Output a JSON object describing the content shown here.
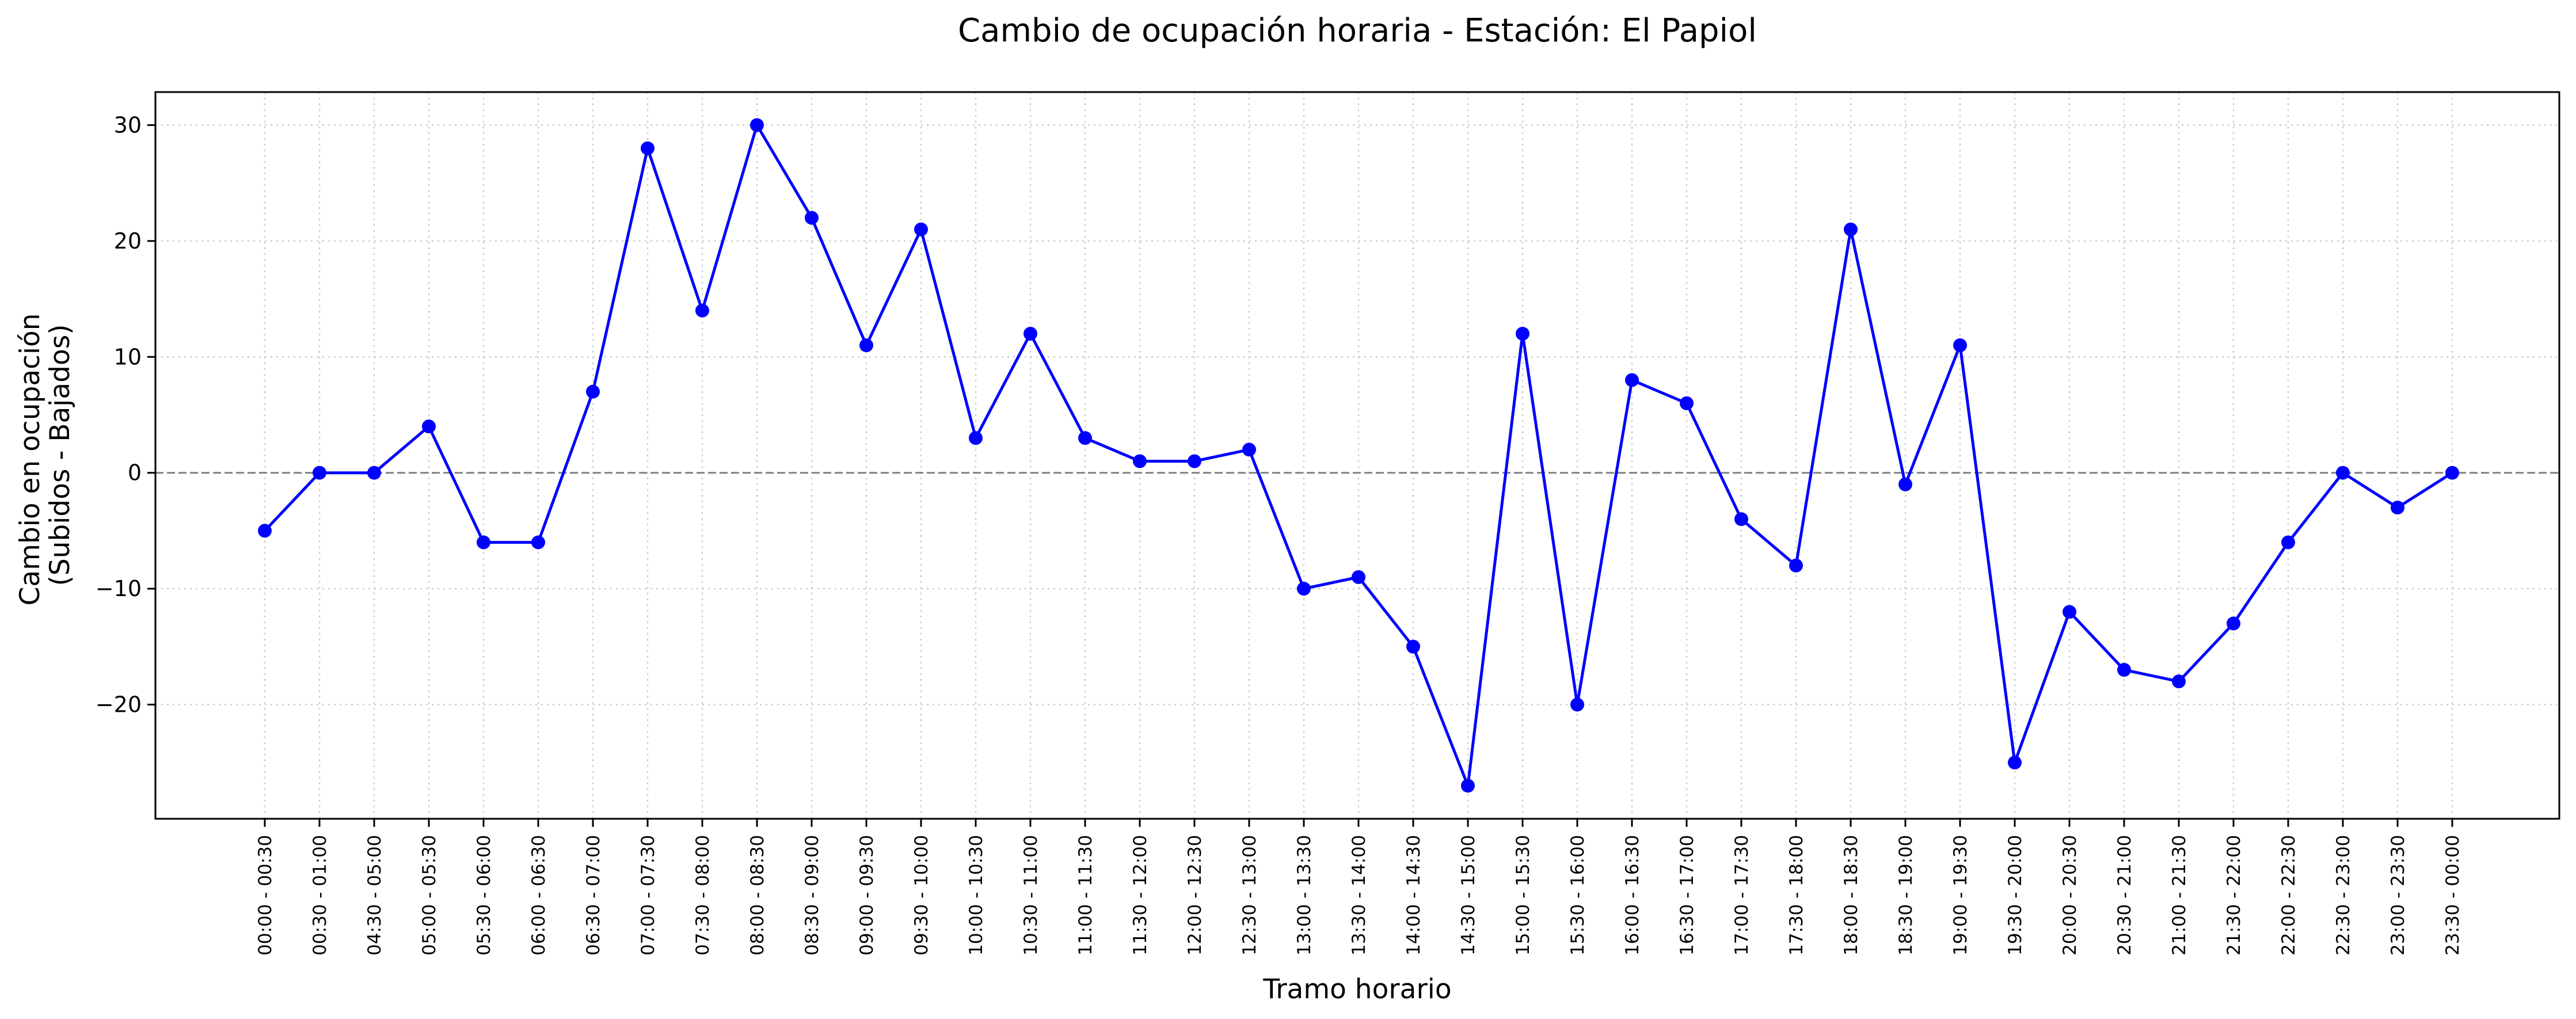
{
  "chart_data": {
    "type": "line",
    "title": "Cambio de ocupación horaria - Estación: El Papiol",
    "xlabel": "Tramo horario",
    "ylabel_lines": [
      "Cambio en ocupación",
      "(Subidos - Bajados)"
    ],
    "categories": [
      "00:00 - 00:30",
      "00:30 - 01:00",
      "04:30 - 05:00",
      "05:00 - 05:30",
      "05:30 - 06:00",
      "06:00 - 06:30",
      "06:30 - 07:00",
      "07:00 - 07:30",
      "07:30 - 08:00",
      "08:00 - 08:30",
      "08:30 - 09:00",
      "09:00 - 09:30",
      "09:30 - 10:00",
      "10:00 - 10:30",
      "10:30 - 11:00",
      "11:00 - 11:30",
      "11:30 - 12:00",
      "12:00 - 12:30",
      "12:30 - 13:00",
      "13:00 - 13:30",
      "13:30 - 14:00",
      "14:00 - 14:30",
      "14:30 - 15:00",
      "15:00 - 15:30",
      "15:30 - 16:00",
      "16:00 - 16:30",
      "16:30 - 17:00",
      "17:00 - 17:30",
      "17:30 - 18:00",
      "18:00 - 18:30",
      "18:30 - 19:00",
      "19:00 - 19:30",
      "19:30 - 20:00",
      "20:00 - 20:30",
      "20:30 - 21:00",
      "21:00 - 21:30",
      "21:30 - 22:00",
      "22:00 - 22:30",
      "22:30 - 23:00",
      "23:00 - 23:30",
      "23:30 - 00:00"
    ],
    "values": [
      -5,
      0,
      0,
      4,
      -6,
      -6,
      7,
      28,
      14,
      30,
      22,
      11,
      21,
      3,
      12,
      3,
      1,
      1,
      2,
      -10,
      -9,
      -15,
      -27,
      12,
      -20,
      8,
      6,
      -4,
      -8,
      21,
      -1,
      11,
      -25,
      -12,
      -17,
      -18,
      -13,
      -6,
      0,
      -3,
      0
    ],
    "yticks": [
      -20,
      -10,
      0,
      10,
      20,
      30
    ],
    "ylim": [
      -29.85,
      32.85
    ],
    "grid": true,
    "reference_line_y": 0,
    "colors": {
      "line": "#0000ff",
      "grid": "#cccccc",
      "reference": "#808080",
      "axes": "#000000"
    }
  }
}
